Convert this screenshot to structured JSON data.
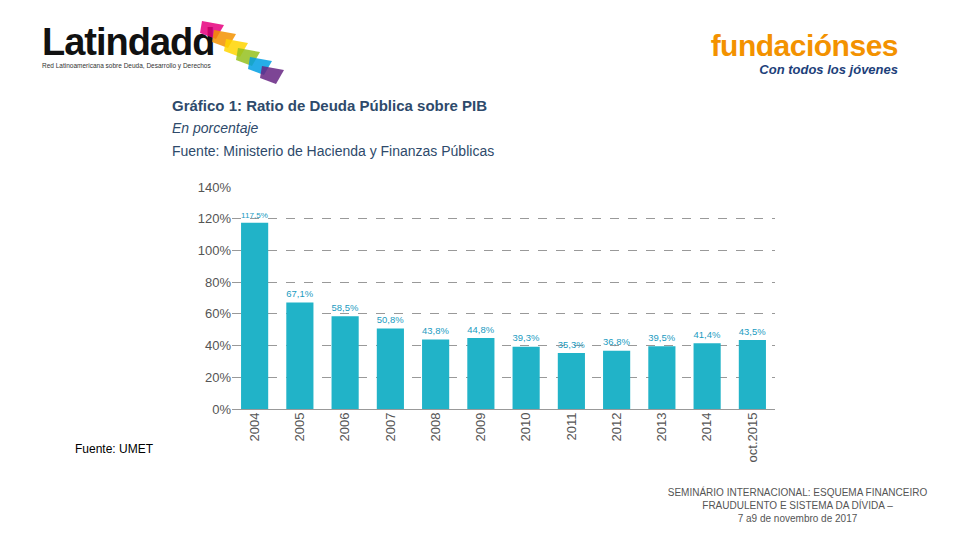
{
  "header": {
    "left_logo": "Latindadd",
    "left_tagline": "Red Latinoamericana sobre Deuda, Desarrollo y Derechos",
    "right_logo": "fundaciónses",
    "right_tagline": "Con todos los jóvenes"
  },
  "footer": [
    "SEMINÁRIO INTERNACIONAL: ESQUEMA FINANCEIRO",
    "FRAUDULENTO E SISTEMA DA DÍVIDA –",
    "7 a9 de novembro de 2017"
  ],
  "chart_data": {
    "type": "bar",
    "title": "Gráfico 1: Ratio de Deuda Pública sobre PIB",
    "subtitle": "En porcentaje",
    "annotations": [
      "Fuente: Ministerio de Hacienda y Finanzas Públicas",
      "Fuente: UMET"
    ],
    "categories": [
      "2004",
      "2005",
      "2006",
      "2007",
      "2008",
      "2009",
      "2010",
      "2011",
      "2012",
      "2013",
      "2014",
      "oct.2015"
    ],
    "values": [
      117.5,
      67.1,
      58.5,
      50.8,
      43.8,
      44.8,
      39.3,
      35.3,
      36.8,
      39.5,
      41.4,
      43.5
    ],
    "value_labels": [
      "117,5%",
      "67,1%",
      "58,5%",
      "50,8%",
      "43,8%",
      "44,8%",
      "39,3%",
      "35,3%",
      "36,8%",
      "39,5%",
      "41,4%",
      "43,5%"
    ],
    "color": "#21b3c8",
    "data_labels": true,
    "ylim": [
      0,
      140
    ],
    "yticks": [
      {
        "value": 0,
        "label": "0%"
      },
      {
        "value": 20,
        "label": "20%"
      },
      {
        "value": 40,
        "label": "40%"
      },
      {
        "value": 60,
        "label": "60%"
      },
      {
        "value": 80,
        "label": "80%"
      },
      {
        "value": 100,
        "label": "100%"
      },
      {
        "value": 120,
        "label": "120%"
      },
      {
        "value": 140,
        "label": "140%"
      }
    ],
    "grid": true
  }
}
